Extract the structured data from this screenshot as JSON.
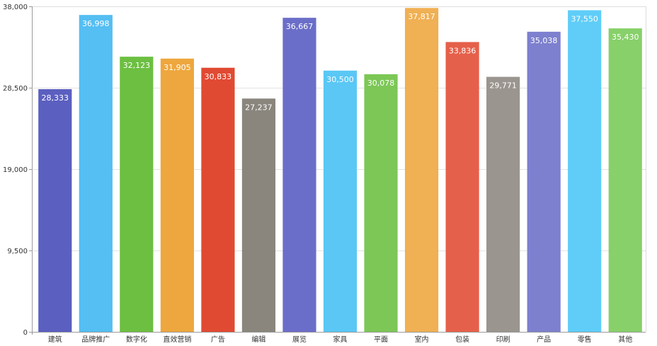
{
  "chart_data": {
    "type": "bar",
    "title": "",
    "xlabel": "",
    "ylabel": "",
    "ylim": [
      0,
      38000
    ],
    "y_ticks": [
      0,
      9500,
      19000,
      28500,
      38000
    ],
    "y_tick_labels": [
      "0",
      "9,500",
      "19,000",
      "28,500",
      "38,000"
    ],
    "grid": true,
    "legend": "none",
    "categories": [
      "建筑",
      "品牌推广",
      "数字化",
      "直效营销",
      "广告",
      "编辑",
      "展览",
      "家具",
      "平面",
      "室内",
      "包装",
      "印刷",
      "产品",
      "零售",
      "其他"
    ],
    "values": [
      28333,
      36998,
      32123,
      31905,
      30833,
      27237,
      36667,
      30500,
      30078,
      37817,
      33836,
      29771,
      35038,
      37550,
      35430
    ],
    "value_labels": [
      "28,333",
      "36,998",
      "32,123",
      "31,905",
      "30,833",
      "27,237",
      "36,667",
      "30,500",
      "30,078",
      "37,817",
      "33,836",
      "29,771",
      "35,038",
      "37,550",
      "35,430"
    ],
    "colors": [
      "#5b5fc0",
      "#55bef2",
      "#6cbf40",
      "#eea73e",
      "#e14a32",
      "#8a867d",
      "#6b6ec8",
      "#5ac7f5",
      "#7cc756",
      "#f0b054",
      "#e5604a",
      "#9a958e",
      "#7d80ce",
      "#5fcdf8",
      "#87d06a"
    ]
  }
}
